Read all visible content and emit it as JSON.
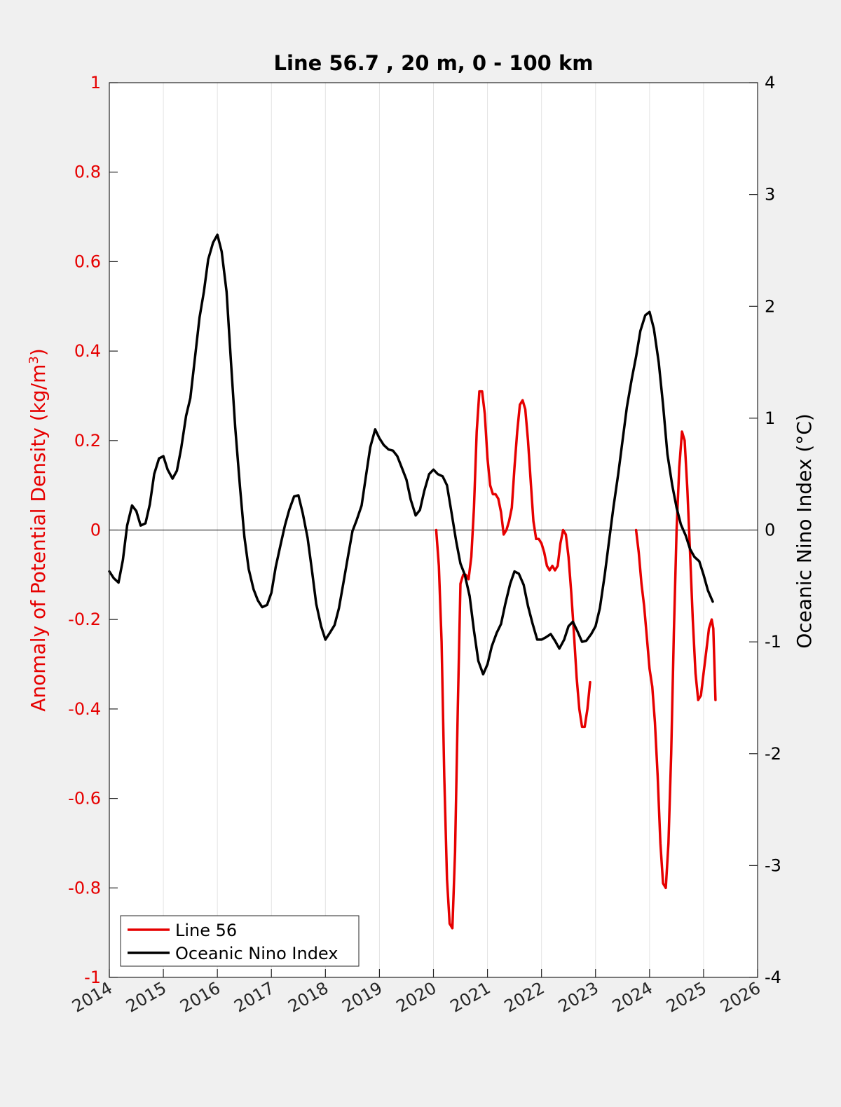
{
  "chart_data": {
    "type": "line",
    "title": "Line 56.7 , 20 m, 0 - 100 km",
    "xlabel": "",
    "x_ticks": [
      "2014",
      "2015",
      "2016",
      "2017",
      "2018",
      "2019",
      "2020",
      "2021",
      "2022",
      "2023",
      "2024",
      "2025",
      "2026"
    ],
    "xlim": [
      2014,
      2026
    ],
    "left_axis": {
      "label_prefix": "Anomaly of Potential Density (kg/m",
      "label_sup": "3",
      "label_suffix": ")",
      "ylim": [
        -1,
        1
      ],
      "ticks": [
        "1",
        "0.8",
        "0.6",
        "0.4",
        "0.2",
        "0",
        "-0.2",
        "-0.4",
        "-0.6",
        "-0.8",
        "-1"
      ],
      "color": "#e60000"
    },
    "right_axis": {
      "label": "Oceanic Nino Index (°C)",
      "ylim": [
        -4,
        4
      ],
      "ticks": [
        "4",
        "3",
        "2",
        "1",
        "0",
        "-1",
        "-2",
        "-3",
        "-4"
      ],
      "color": "#000000"
    },
    "grid": "vertical",
    "zero_line": true,
    "legend": {
      "placement": "bottom-left",
      "entries": [
        "Line 56",
        "Oceanic Nino Index"
      ]
    },
    "series": [
      {
        "name": "Line 56",
        "axis": "left",
        "color": "#e60000",
        "segments": [
          [
            [
              2020.05,
              0.0
            ],
            [
              2020.1,
              -0.08
            ],
            [
              2020.15,
              -0.25
            ],
            [
              2020.2,
              -0.55
            ],
            [
              2020.25,
              -0.78
            ],
            [
              2020.3,
              -0.88
            ],
            [
              2020.35,
              -0.89
            ],
            [
              2020.4,
              -0.72
            ],
            [
              2020.45,
              -0.4
            ],
            [
              2020.5,
              -0.12
            ],
            [
              2020.55,
              -0.1
            ],
            [
              2020.6,
              -0.1
            ],
            [
              2020.65,
              -0.11
            ],
            [
              2020.7,
              -0.06
            ],
            [
              2020.75,
              0.05
            ],
            [
              2020.8,
              0.22
            ],
            [
              2020.85,
              0.31
            ],
            [
              2020.9,
              0.31
            ],
            [
              2020.95,
              0.26
            ],
            [
              2021.0,
              0.16
            ],
            [
              2021.05,
              0.1
            ],
            [
              2021.1,
              0.08
            ],
            [
              2021.15,
              0.08
            ],
            [
              2021.2,
              0.07
            ],
            [
              2021.25,
              0.04
            ],
            [
              2021.3,
              -0.01
            ],
            [
              2021.35,
              0.0
            ],
            [
              2021.4,
              0.02
            ],
            [
              2021.45,
              0.05
            ],
            [
              2021.5,
              0.14
            ],
            [
              2021.55,
              0.22
            ],
            [
              2021.6,
              0.28
            ],
            [
              2021.65,
              0.29
            ],
            [
              2021.7,
              0.27
            ],
            [
              2021.75,
              0.2
            ],
            [
              2021.8,
              0.11
            ],
            [
              2021.85,
              0.02
            ],
            [
              2021.9,
              -0.02
            ],
            [
              2021.95,
              -0.02
            ],
            [
              2022.0,
              -0.03
            ],
            [
              2022.05,
              -0.05
            ],
            [
              2022.1,
              -0.08
            ],
            [
              2022.15,
              -0.09
            ],
            [
              2022.2,
              -0.08
            ],
            [
              2022.25,
              -0.09
            ],
            [
              2022.3,
              -0.08
            ],
            [
              2022.35,
              -0.03
            ],
            [
              2022.4,
              0.0
            ],
            [
              2022.45,
              -0.01
            ],
            [
              2022.5,
              -0.06
            ],
            [
              2022.55,
              -0.14
            ],
            [
              2022.6,
              -0.23
            ],
            [
              2022.65,
              -0.33
            ],
            [
              2022.7,
              -0.4
            ],
            [
              2022.75,
              -0.44
            ],
            [
              2022.8,
              -0.44
            ],
            [
              2022.85,
              -0.4
            ],
            [
              2022.9,
              -0.34
            ]
          ],
          [
            [
              2023.75,
              0.0
            ],
            [
              2023.8,
              -0.05
            ],
            [
              2023.85,
              -0.12
            ],
            [
              2023.9,
              -0.17
            ],
            [
              2023.95,
              -0.24
            ],
            [
              2024.0,
              -0.31
            ],
            [
              2024.05,
              -0.35
            ],
            [
              2024.1,
              -0.43
            ],
            [
              2024.15,
              -0.55
            ],
            [
              2024.2,
              -0.7
            ],
            [
              2024.25,
              -0.79
            ],
            [
              2024.3,
              -0.8
            ],
            [
              2024.35,
              -0.7
            ],
            [
              2024.4,
              -0.5
            ],
            [
              2024.45,
              -0.23
            ],
            [
              2024.5,
              0.0
            ],
            [
              2024.55,
              0.14
            ],
            [
              2024.6,
              0.22
            ],
            [
              2024.65,
              0.2
            ],
            [
              2024.7,
              0.09
            ],
            [
              2024.75,
              -0.05
            ],
            [
              2024.8,
              -0.2
            ],
            [
              2024.85,
              -0.32
            ],
            [
              2024.9,
              -0.38
            ],
            [
              2024.95,
              -0.37
            ],
            [
              2025.0,
              -0.32
            ],
            [
              2025.05,
              -0.27
            ],
            [
              2025.1,
              -0.22
            ],
            [
              2025.15,
              -0.2
            ],
            [
              2025.18,
              -0.22
            ],
            [
              2025.22,
              -0.38
            ]
          ]
        ]
      },
      {
        "name": "Oceanic Nino Index",
        "axis": "right",
        "color": "#000000",
        "points": [
          [
            2014.0,
            -0.37
          ],
          [
            2014.08,
            -0.43
          ],
          [
            2014.17,
            -0.47
          ],
          [
            2014.25,
            -0.27
          ],
          [
            2014.33,
            0.04
          ],
          [
            2014.42,
            0.22
          ],
          [
            2014.5,
            0.17
          ],
          [
            2014.58,
            0.04
          ],
          [
            2014.67,
            0.06
          ],
          [
            2014.75,
            0.23
          ],
          [
            2014.83,
            0.5
          ],
          [
            2014.92,
            0.64
          ],
          [
            2015.0,
            0.66
          ],
          [
            2015.08,
            0.54
          ],
          [
            2015.17,
            0.46
          ],
          [
            2015.25,
            0.53
          ],
          [
            2015.33,
            0.73
          ],
          [
            2015.42,
            1.02
          ],
          [
            2015.5,
            1.18
          ],
          [
            2015.58,
            1.52
          ],
          [
            2015.67,
            1.9
          ],
          [
            2015.75,
            2.13
          ],
          [
            2015.83,
            2.42
          ],
          [
            2015.92,
            2.57
          ],
          [
            2016.0,
            2.64
          ],
          [
            2016.08,
            2.49
          ],
          [
            2016.17,
            2.13
          ],
          [
            2016.25,
            1.52
          ],
          [
            2016.33,
            0.92
          ],
          [
            2016.42,
            0.38
          ],
          [
            2016.5,
            -0.06
          ],
          [
            2016.58,
            -0.35
          ],
          [
            2016.67,
            -0.53
          ],
          [
            2016.75,
            -0.63
          ],
          [
            2016.83,
            -0.69
          ],
          [
            2016.92,
            -0.67
          ],
          [
            2017.0,
            -0.56
          ],
          [
            2017.08,
            -0.33
          ],
          [
            2017.17,
            -0.13
          ],
          [
            2017.25,
            0.04
          ],
          [
            2017.33,
            0.18
          ],
          [
            2017.42,
            0.3
          ],
          [
            2017.5,
            0.31
          ],
          [
            2017.58,
            0.15
          ],
          [
            2017.67,
            -0.07
          ],
          [
            2017.75,
            -0.36
          ],
          [
            2017.83,
            -0.66
          ],
          [
            2017.92,
            -0.86
          ],
          [
            2018.0,
            -0.98
          ],
          [
            2018.08,
            -0.92
          ],
          [
            2018.17,
            -0.85
          ],
          [
            2018.25,
            -0.7
          ],
          [
            2018.33,
            -0.48
          ],
          [
            2018.42,
            -0.23
          ],
          [
            2018.5,
            -0.01
          ],
          [
            2018.58,
            0.09
          ],
          [
            2018.67,
            0.22
          ],
          [
            2018.75,
            0.48
          ],
          [
            2018.83,
            0.74
          ],
          [
            2018.92,
            0.9
          ],
          [
            2019.0,
            0.82
          ],
          [
            2019.08,
            0.76
          ],
          [
            2019.17,
            0.72
          ],
          [
            2019.25,
            0.71
          ],
          [
            2019.33,
            0.66
          ],
          [
            2019.42,
            0.55
          ],
          [
            2019.5,
            0.45
          ],
          [
            2019.58,
            0.27
          ],
          [
            2019.67,
            0.13
          ],
          [
            2019.75,
            0.18
          ],
          [
            2019.83,
            0.35
          ],
          [
            2019.92,
            0.5
          ],
          [
            2020.0,
            0.54
          ],
          [
            2020.08,
            0.5
          ],
          [
            2020.17,
            0.48
          ],
          [
            2020.25,
            0.4
          ],
          [
            2020.33,
            0.17
          ],
          [
            2020.42,
            -0.1
          ],
          [
            2020.5,
            -0.3
          ],
          [
            2020.58,
            -0.4
          ],
          [
            2020.67,
            -0.59
          ],
          [
            2020.75,
            -0.9
          ],
          [
            2020.83,
            -1.17
          ],
          [
            2020.92,
            -1.29
          ],
          [
            2021.0,
            -1.2
          ],
          [
            2021.08,
            -1.04
          ],
          [
            2021.17,
            -0.92
          ],
          [
            2021.25,
            -0.84
          ],
          [
            2021.33,
            -0.66
          ],
          [
            2021.42,
            -0.48
          ],
          [
            2021.5,
            -0.37
          ],
          [
            2021.58,
            -0.39
          ],
          [
            2021.67,
            -0.49
          ],
          [
            2021.75,
            -0.68
          ],
          [
            2021.83,
            -0.83
          ],
          [
            2021.92,
            -0.98
          ],
          [
            2022.0,
            -0.98
          ],
          [
            2022.08,
            -0.96
          ],
          [
            2022.17,
            -0.93
          ],
          [
            2022.25,
            -0.99
          ],
          [
            2022.33,
            -1.06
          ],
          [
            2022.42,
            -0.98
          ],
          [
            2022.5,
            -0.86
          ],
          [
            2022.58,
            -0.82
          ],
          [
            2022.67,
            -0.91
          ],
          [
            2022.75,
            -1.0
          ],
          [
            2022.83,
            -0.99
          ],
          [
            2022.92,
            -0.93
          ],
          [
            2023.0,
            -0.86
          ],
          [
            2023.08,
            -0.7
          ],
          [
            2023.17,
            -0.4
          ],
          [
            2023.25,
            -0.1
          ],
          [
            2023.33,
            0.2
          ],
          [
            2023.42,
            0.5
          ],
          [
            2023.5,
            0.8
          ],
          [
            2023.58,
            1.1
          ],
          [
            2023.67,
            1.35
          ],
          [
            2023.75,
            1.55
          ],
          [
            2023.83,
            1.78
          ],
          [
            2023.92,
            1.92
          ],
          [
            2024.0,
            1.95
          ],
          [
            2024.08,
            1.8
          ],
          [
            2024.17,
            1.5
          ],
          [
            2024.25,
            1.12
          ],
          [
            2024.33,
            0.68
          ],
          [
            2024.42,
            0.4
          ],
          [
            2024.5,
            0.2
          ],
          [
            2024.58,
            0.05
          ],
          [
            2024.67,
            -0.05
          ],
          [
            2024.75,
            -0.17
          ],
          [
            2024.83,
            -0.24
          ],
          [
            2024.92,
            -0.28
          ],
          [
            2025.0,
            -0.4
          ],
          [
            2025.08,
            -0.54
          ],
          [
            2025.17,
            -0.64
          ]
        ]
      }
    ]
  }
}
